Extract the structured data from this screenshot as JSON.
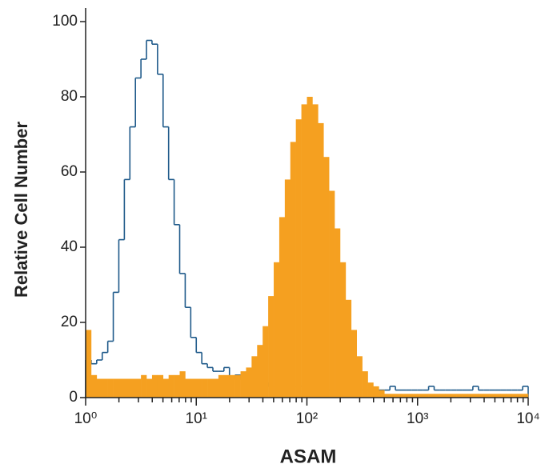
{
  "chart_data": {
    "type": "histogram",
    "xlabel": "ASAM",
    "ylabel": "Relative Cell Number",
    "xlog": true,
    "xlim": [
      1,
      10000
    ],
    "ylim": [
      0,
      100
    ],
    "xticks": [
      {
        "value": 1,
        "label": "10⁰"
      },
      {
        "value": 10,
        "label": "10¹"
      },
      {
        "value": 100,
        "label": "10²"
      },
      {
        "value": 1000,
        "label": "10³"
      },
      {
        "value": 10000,
        "label": "10⁴"
      }
    ],
    "yticks": [
      0,
      20,
      40,
      60,
      80,
      100
    ],
    "bins": [
      1,
      1.122,
      1.259,
      1.413,
      1.585,
      1.778,
      1.995,
      2.239,
      2.512,
      2.818,
      3.162,
      3.548,
      3.981,
      4.467,
      5.012,
      5.623,
      6.31,
      7.079,
      7.943,
      8.913,
      10,
      11.22,
      12.59,
      14.13,
      15.85,
      17.78,
      19.95,
      22.39,
      25.12,
      28.18,
      31.62,
      35.48,
      39.81,
      44.67,
      50.12,
      56.23,
      63.1,
      70.79,
      79.43,
      89.13,
      100,
      112.2,
      125.9,
      141.3,
      158.5,
      177.8,
      199.5,
      223.9,
      251.2,
      281.8,
      316.2,
      354.8,
      398.1,
      446.7,
      501.2,
      562.3,
      631,
      707.9,
      794.3,
      891.3,
      1000,
      1122,
      1259,
      1413,
      1585,
      1778,
      1995,
      2239,
      2512,
      2818,
      3162,
      3548,
      3981,
      4467,
      5012,
      5623,
      6310,
      7079,
      7943,
      8913,
      10000
    ],
    "series": [
      {
        "color": "#1f5a8a",
        "filled": false,
        "values": [
          10,
          9,
          10,
          12,
          15,
          28,
          42,
          58,
          72,
          85,
          90,
          95,
          94,
          86,
          72,
          58,
          46,
          33,
          24,
          16,
          12,
          9,
          8,
          7,
          7,
          8,
          5,
          6,
          5,
          5,
          4,
          4,
          4,
          3,
          3,
          3,
          3,
          3,
          3,
          3,
          2,
          2,
          2,
          2,
          2,
          2,
          2,
          2,
          2,
          2,
          2,
          2,
          2,
          2,
          2,
          3,
          2,
          2,
          2,
          2,
          2,
          2,
          3,
          2,
          2,
          2,
          2,
          2,
          2,
          2,
          3,
          2,
          2,
          2,
          2,
          2,
          2,
          2,
          2,
          3
        ]
      },
      {
        "color": "#f5a020",
        "filled": true,
        "values": [
          18,
          6,
          5,
          5,
          5,
          5,
          5,
          5,
          5,
          5,
          6,
          5,
          6,
          6,
          5,
          6,
          6,
          7,
          5,
          5,
          5,
          5,
          5,
          5,
          6,
          6,
          6,
          6,
          7,
          8,
          11,
          14,
          19,
          27,
          36,
          48,
          58,
          68,
          74,
          78,
          80,
          78,
          73,
          64,
          55,
          45,
          36,
          26,
          18,
          11,
          7,
          4,
          3,
          2,
          1,
          1,
          1,
          1,
          1,
          1,
          1,
          1,
          1,
          1,
          1,
          1,
          1,
          1,
          1,
          1,
          1,
          1,
          1,
          1,
          1,
          1,
          1,
          1,
          1,
          1
        ]
      }
    ]
  }
}
